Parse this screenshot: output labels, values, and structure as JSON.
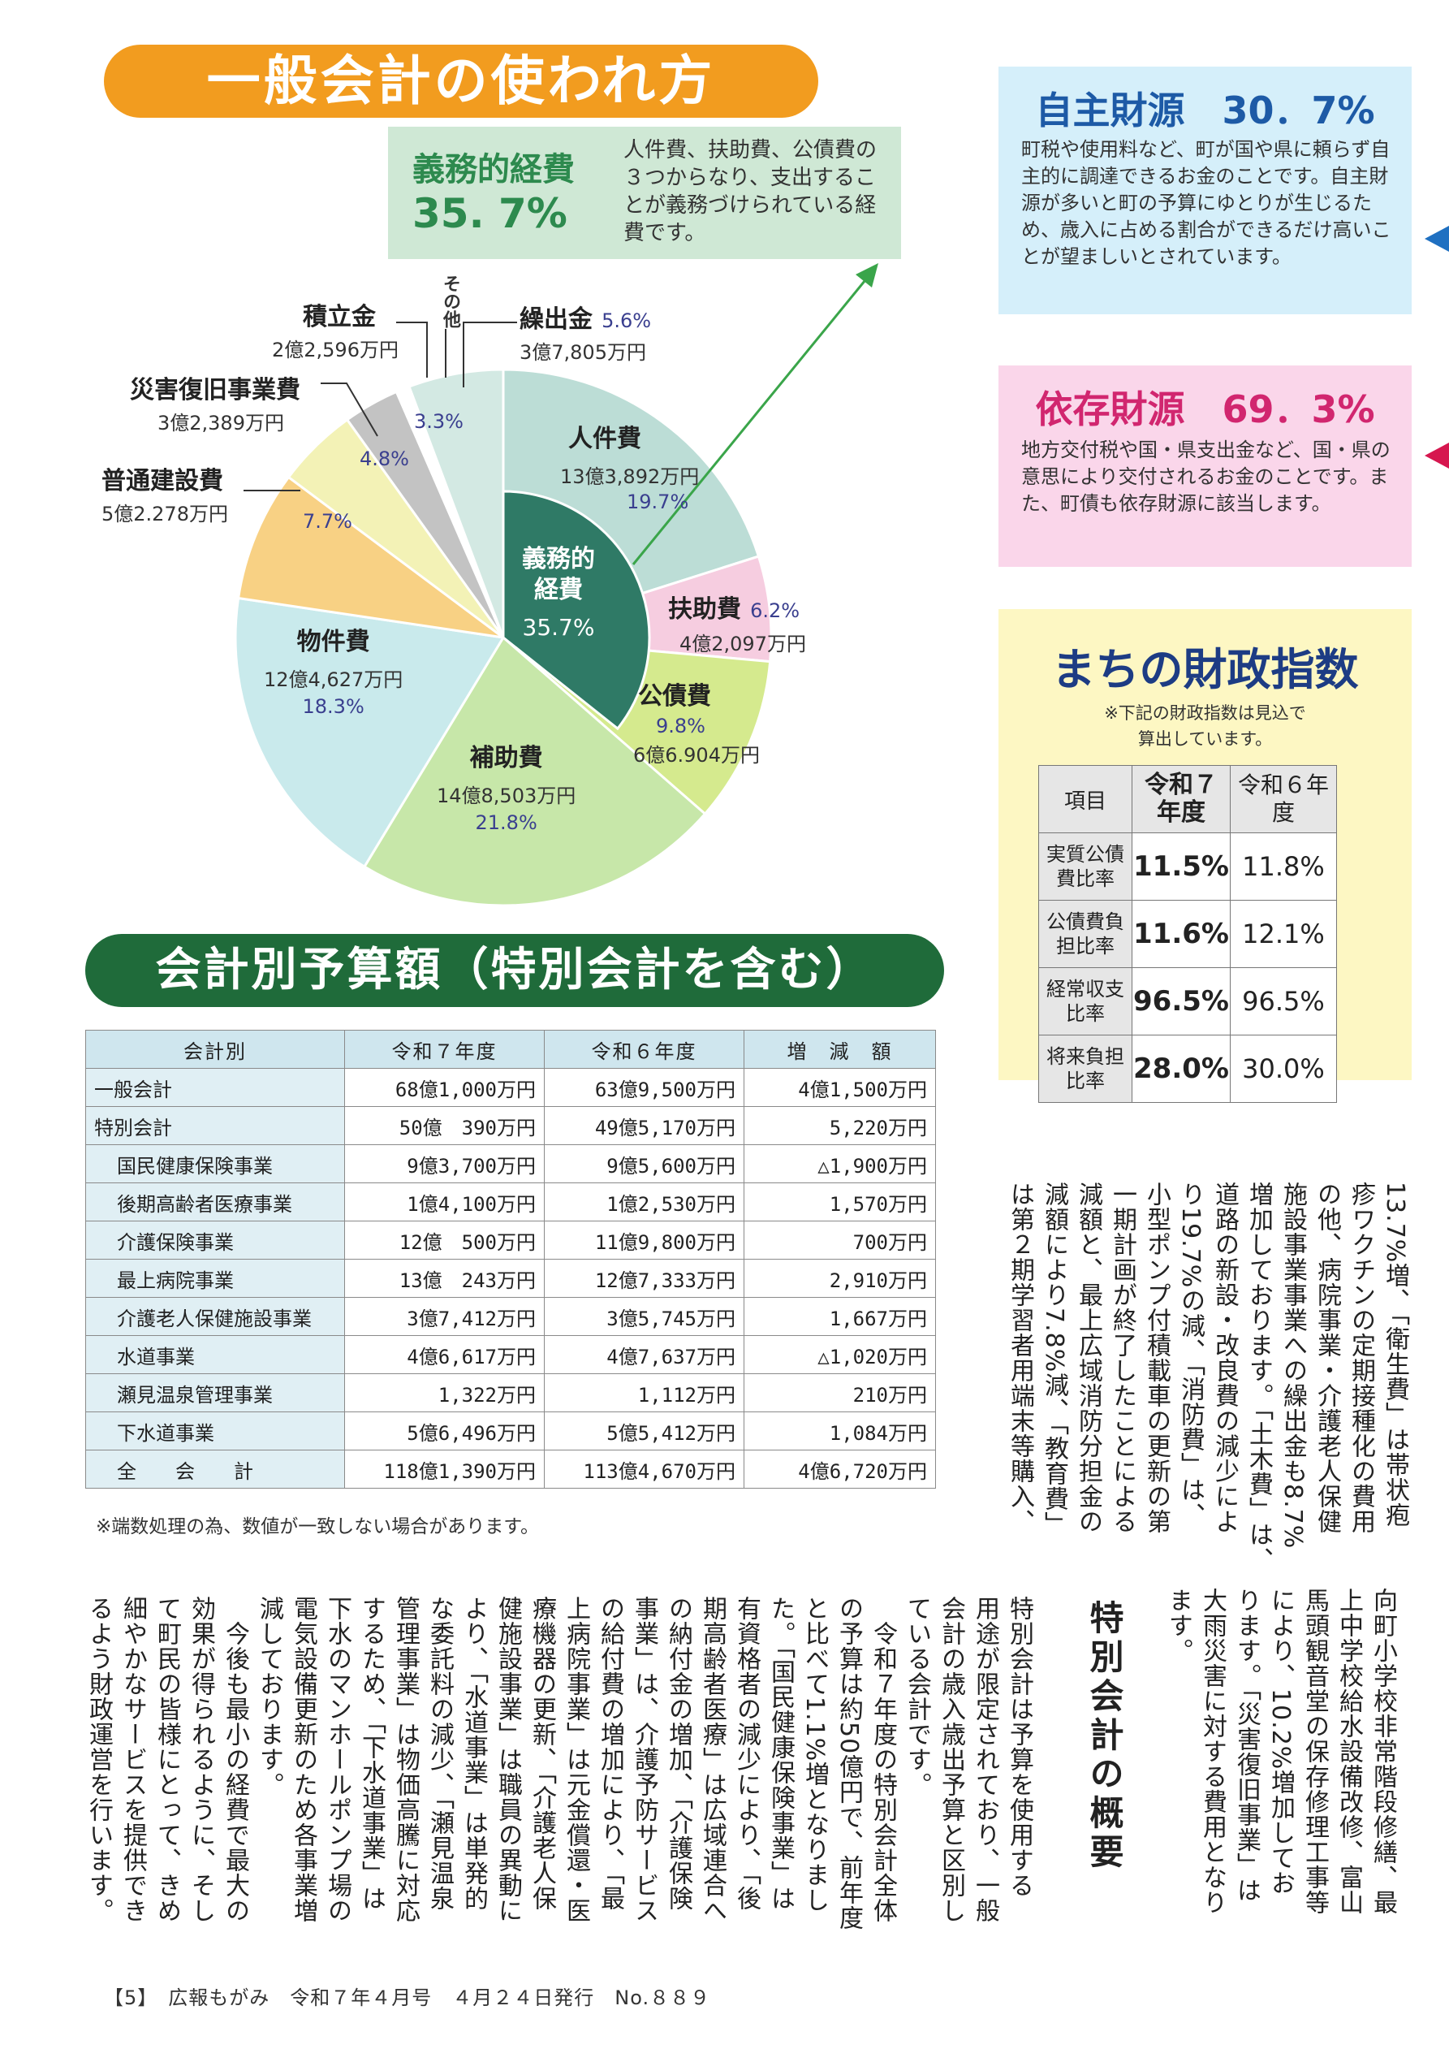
{
  "banner_title": "一般会計の使われ方",
  "mandatory": {
    "title": "義務的経費",
    "pct": "35. 7%",
    "desc": "人件費、扶助費、公債費の３つからなり、支出することが義務づけられている経費です。",
    "inner_label1": "義務的",
    "inner_label2": "経費",
    "inner_pct": "35.7%"
  },
  "chart_data": {
    "type": "pie",
    "title": "",
    "slices": [
      {
        "name": "人件費",
        "amount": "13億3,892万円",
        "value": 19.7,
        "color": "#bcddd6",
        "label_pct": "19.7%"
      },
      {
        "name": "扶助費",
        "amount": "4億2,097万円",
        "value": 6.2,
        "color": "#f6cde0",
        "label_pct": "6.2%"
      },
      {
        "name": "公債費",
        "amount": "6億6.904万円",
        "value": 9.8,
        "color": "#d5ea8e",
        "label_pct": "9.8%"
      },
      {
        "name": "補助費",
        "amount": "14億8,503万円",
        "value": 21.8,
        "color": "#c7e7a9",
        "label_pct": "21.8%"
      },
      {
        "name": "物件費",
        "amount": "12億4,627万円",
        "value": 18.3,
        "color": "#c9eaec",
        "label_pct": "18.3%"
      },
      {
        "name": "普通建設費",
        "amount": "5億2.278万円",
        "value": 7.7,
        "color": "#f8d184",
        "label_pct": "7.7%"
      },
      {
        "name": "災害復旧事業費",
        "amount": "3億2,389万円",
        "value": 4.8,
        "color": "#f3f2b6",
        "label_pct": "4.8%"
      },
      {
        "name": "積立金",
        "amount": "2億2,596万円",
        "value": 3.3,
        "color": "#c3c3c3",
        "label_pct": "3.3%"
      },
      {
        "name": "その他",
        "amount": "",
        "value": 0.8,
        "color": "#ffffff",
        "label_pct": ""
      },
      {
        "name": "繰出金",
        "amount": "3億7,805万円",
        "value": 5.6,
        "color": "#d3e9e3",
        "label_pct": "5.6%"
      }
    ],
    "mandatory_share": 35.7
  },
  "jishu": {
    "title": "自主財源　30．7%",
    "text": "町税や使用料など、町が国や県に頼らず自主的に調達できるお金のことです。自主財源が多いと町の予算にゆとりが生じるため、歳入に占める割合ができるだけ高いことが望ましいとされています。"
  },
  "izon": {
    "title": "依存財源　69．3%",
    "text": "地方交付税や国・県支出金など、国・県の意思により交付されるお金のことです。また、町債も依存財源に該当します。"
  },
  "fin_index": {
    "title": "まちの財政指数",
    "note1": "※下記の財政指数は見込で",
    "note2": "算出しています。",
    "headers": [
      "項目",
      "令和７年度",
      "令和６年度"
    ],
    "rows": [
      {
        "item": "実質公債費比率",
        "r7": "11.5%",
        "r6": "11.8%"
      },
      {
        "item": "公債費負担比率",
        "r7": "11.6%",
        "r6": "12.1%"
      },
      {
        "item": "経常収支比率",
        "r7": "96.5%",
        "r6": "96.5%"
      },
      {
        "item": "将来負担比率",
        "r7": "28.0%",
        "r6": "30.0%"
      }
    ]
  },
  "budget_title": "会計別予算額（特別会計を含む）",
  "budget": {
    "headers": [
      "会計別",
      "令和７年度",
      "令和６年度",
      "増　減　額"
    ],
    "rows": [
      {
        "name": "一般会計",
        "r7": "68億1,000万円",
        "r6": "63億9,500万円",
        "diff": "4億1,500万円",
        "indent": false
      },
      {
        "name": "特別会計",
        "r7": "50億　390万円",
        "r6": "49億5,170万円",
        "diff": "5,220万円",
        "indent": false
      },
      {
        "name": "国民健康保険事業",
        "r7": "9億3,700万円",
        "r6": "9億5,600万円",
        "diff": "△1,900万円",
        "indent": true
      },
      {
        "name": "後期高齢者医療事業",
        "r7": "1億4,100万円",
        "r6": "1億2,530万円",
        "diff": "1,570万円",
        "indent": true
      },
      {
        "name": "介護保険事業",
        "r7": "12億　500万円",
        "r6": "11億9,800万円",
        "diff": "700万円",
        "indent": true
      },
      {
        "name": "最上病院事業",
        "r7": "13億　243万円",
        "r6": "12億7,333万円",
        "diff": "2,910万円",
        "indent": true
      },
      {
        "name": "介護老人保健施設事業",
        "r7": "3億7,412万円",
        "r6": "3億5,745万円",
        "diff": "1,667万円",
        "indent": true
      },
      {
        "name": "水道事業",
        "r7": "4億6,617万円",
        "r6": "4億7,637万円",
        "diff": "△1,020万円",
        "indent": true
      },
      {
        "name": "瀬見温泉管理事業",
        "r7": "1,322万円",
        "r6": "1,112万円",
        "diff": "210万円",
        "indent": true
      },
      {
        "name": "下水道事業",
        "r7": "5億6,496万円",
        "r6": "5億5,412万円",
        "diff": "1,084万円",
        "indent": true
      },
      {
        "name": "全　　会　　計",
        "r7": "118億1,390万円",
        "r6": "113億4,670万円",
        "diff": "4億6,720万円",
        "indent": true
      }
    ],
    "note": "※端数処理の為、数値が一致しない場合があります。"
  },
  "body_upper": [
    "13.7%増、「衛生費」は帯状疱",
    "疹ワクチンの定期接種化の費用",
    "の他、病院事業・介護老人保健",
    "施設事業事業への繰出金も8.7%",
    "増加しております。「土木費」は、",
    "道路の新設・改良費の減少によ",
    "り19.7%の減、「消防費」は、",
    "小型ポンプ付積載車の更新の第",
    "一期計画が終了したことによる",
    "減額と、最上広域消防分担金の",
    "減額により7.8%減、「教育費」",
    "は第２期学習者用端末等購入、"
  ],
  "body_lower_right": [
    "向町小学校非常階段修繕、最",
    "上中学校給水設備改修、富山",
    "馬頭観音堂の保存修理工事等",
    "により、10.2%増加してお",
    "ります。「災害復旧事業」は",
    "大雨災害に対する費用となり",
    "ます。"
  ],
  "special_title": "特別会計の概要",
  "body_lower_left": [
    "特別会計は予算を使用する",
    "用途が限定されており、一般",
    "会計の歳入歳出予算と区別し",
    "ている会計です。",
    "　令和７年度の特別会計全体",
    "の予算は約50億円で、前年度",
    "と比べて1.1%増となりまし",
    "た。「国民健康保険事業」は",
    "有資格者の減少により、「後",
    "期高齢者医療」は広域連合へ",
    "の納付金の増加、「介護保険",
    "事業」は、介護予防サービス",
    "の給付費の増加により、「最",
    "上病院事業」は元金償還・医",
    "療機器の更新、「介護老人保",
    "健施設事業」は職員の異動に",
    "より、「水道事業」は単発的",
    "な委託料の減少、「瀬見温泉",
    "管理事業」は物価高騰に対応",
    "するため、「下水道事業」は",
    "下水のマンホールポンプ場の",
    "電気設備更新のため各事業増",
    "減しております。",
    "　今後も最小の経費で最大の",
    "効果が得られるように、そし",
    "て町民の皆様にとって、きめ",
    "細やかなサービスを提供でき",
    "るよう財政運営を行います。"
  ],
  "footer": "【5】　広報もがみ　令和７年４月号　４月２４日発行　No.８８９",
  "arrow_colors": {
    "blue": "#1f70c1",
    "red": "#d6174f",
    "green": "#3aa54a"
  }
}
